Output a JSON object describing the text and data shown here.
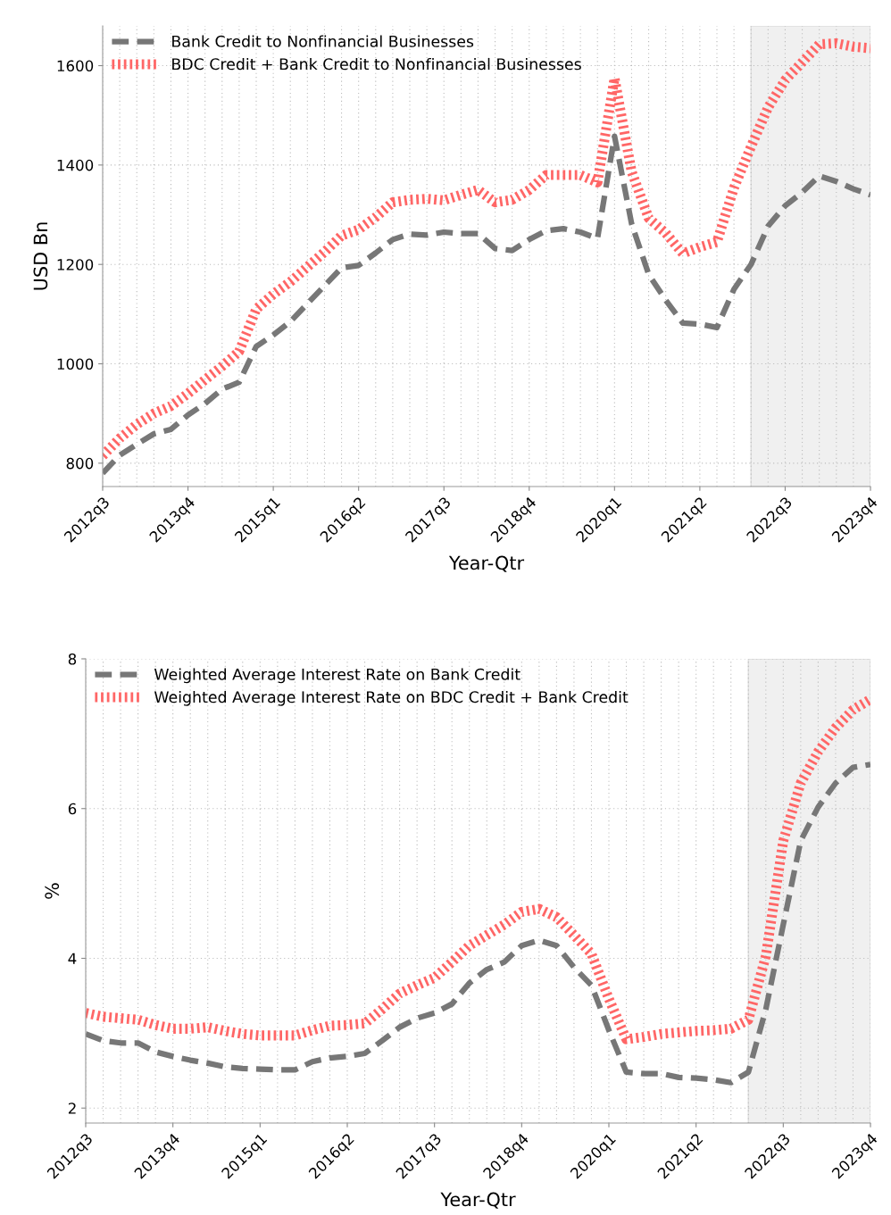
{
  "chart_data": [
    {
      "type": "line",
      "xlabel": "Year-Qtr",
      "ylabel": "USD Bn",
      "categories": [
        "2012q3",
        null,
        null,
        null,
        null,
        "2013q4",
        null,
        null,
        null,
        null,
        "2015q1",
        null,
        null,
        null,
        null,
        "2016q2",
        null,
        null,
        null,
        null,
        "2017q3",
        null,
        null,
        null,
        null,
        "2018q4",
        null,
        null,
        null,
        null,
        "2020q1",
        null,
        null,
        null,
        null,
        "2021q2",
        null,
        null,
        null,
        null,
        "2022q3",
        null,
        null,
        null,
        null,
        "2023q4"
      ],
      "series": [
        {
          "name": "Bank Credit to Nonfinancial Businesses",
          "color": "#777777",
          "line_style": "dashed",
          "values": [
            780,
            816,
            838,
            859,
            868,
            897,
            920,
            949,
            963,
            1035,
            1058,
            1085,
            1121,
            1157,
            1193,
            1198,
            1223,
            1250,
            1261,
            1259,
            1265,
            1262,
            1262,
            1232,
            1228,
            1250,
            1268,
            1272,
            1265,
            1252,
            1458,
            1282,
            1180,
            1128,
            1082,
            1080,
            1073,
            1150,
            1200,
            1277,
            1318,
            1345,
            1378,
            1367,
            1352,
            1340
          ]
        },
        {
          "name": "BDC Credit + Bank Credit to Nonfinancial Businesses",
          "color": "#ff6666",
          "line_style": "dotted",
          "values": [
            815,
            850,
            878,
            900,
            915,
            940,
            968,
            995,
            1025,
            1110,
            1140,
            1165,
            1195,
            1225,
            1258,
            1270,
            1295,
            1325,
            1330,
            1332,
            1329,
            1340,
            1350,
            1325,
            1330,
            1350,
            1380,
            1380,
            1380,
            1365,
            1575,
            1387,
            1293,
            1263,
            1222,
            1235,
            1245,
            1354,
            1437,
            1516,
            1571,
            1607,
            1643,
            1645,
            1638,
            1635
          ]
        }
      ],
      "ylim": [
        753,
        1680
      ],
      "yticks": [
        800,
        1000,
        1200,
        1400,
        1600
      ],
      "grid": true,
      "legend": "top left"
    },
    {
      "type": "line",
      "xlabel": "Year-Qtr",
      "ylabel": "%",
      "categories": [
        "2012q3",
        null,
        null,
        null,
        null,
        "2013q4",
        null,
        null,
        null,
        null,
        "2015q1",
        null,
        null,
        null,
        null,
        "2016q2",
        null,
        null,
        null,
        null,
        "2017q3",
        null,
        null,
        null,
        null,
        "2018q4",
        null,
        null,
        null,
        null,
        "2020q1",
        null,
        null,
        null,
        null,
        "2021q2",
        null,
        null,
        null,
        null,
        "2022q3",
        null,
        null,
        null,
        null,
        "2023q4"
      ],
      "series": [
        {
          "name": "Weighted Average Interest Rate on Bank Credit",
          "color": "#777777",
          "line_style": "dashed",
          "values": [
            2.99,
            2.9,
            2.87,
            2.87,
            2.75,
            2.69,
            2.64,
            2.6,
            2.55,
            2.53,
            2.52,
            2.51,
            2.51,
            2.62,
            2.67,
            2.69,
            2.73,
            2.9,
            3.08,
            3.2,
            3.27,
            3.39,
            3.67,
            3.85,
            3.95,
            4.17,
            4.24,
            4.17,
            3.88,
            3.64,
            3.04,
            2.48,
            2.46,
            2.46,
            2.41,
            2.4,
            2.38,
            2.34,
            2.48,
            3.32,
            4.45,
            5.57,
            6.02,
            6.34,
            6.55,
            6.59
          ]
        },
        {
          "name": "Weighted Average Interest Rate on BDC Credit + Bank Credit",
          "color": "#ff6666",
          "line_style": "dotted",
          "values": [
            3.27,
            3.22,
            3.2,
            3.18,
            3.11,
            3.06,
            3.06,
            3.08,
            3.03,
            2.99,
            2.97,
            2.97,
            2.97,
            3.04,
            3.1,
            3.11,
            3.13,
            3.32,
            3.53,
            3.64,
            3.74,
            3.95,
            4.17,
            4.31,
            4.45,
            4.62,
            4.66,
            4.55,
            4.31,
            4.06,
            3.46,
            2.92,
            2.95,
            2.99,
            3.01,
            3.03,
            3.04,
            3.06,
            3.18,
            4.03,
            5.57,
            6.34,
            6.76,
            7.08,
            7.32,
            7.46
          ]
        }
      ],
      "ylim": [
        1.8,
        8.0
      ],
      "yticks": [
        2,
        4,
        6,
        8
      ],
      "grid": true,
      "legend": "top left"
    }
  ]
}
